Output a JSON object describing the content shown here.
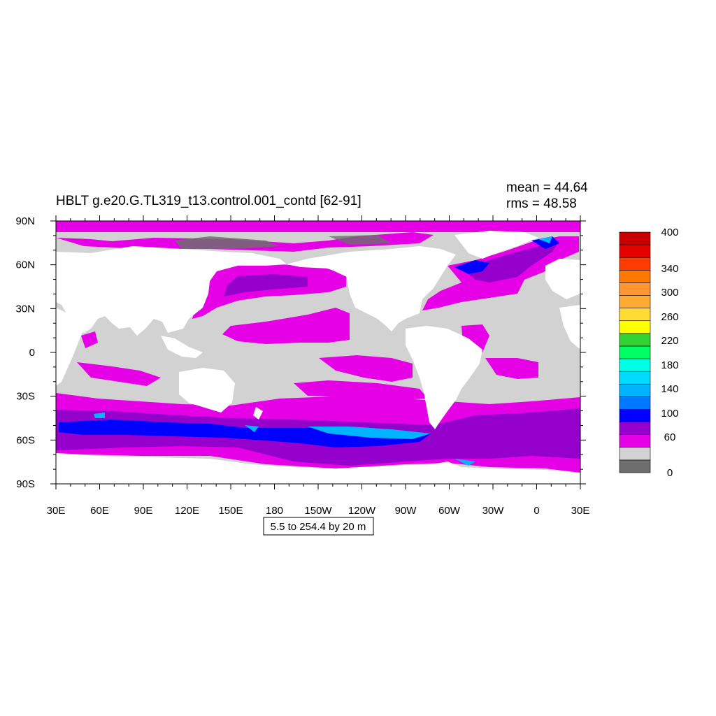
{
  "title": "HBLT g.e20.G.TL319_t13.control.001_contd [62-91]",
  "stats": {
    "mean": "mean = 44.64",
    "rms": "rms = 48.58"
  },
  "range_label": "5.5 to 254.4 by 20 m",
  "lat_ticks": [
    "90N",
    "60N",
    "30N",
    "0",
    "30S",
    "60S",
    "90S"
  ],
  "lon_ticks": [
    "30E",
    "60E",
    "90E",
    "120E",
    "150E",
    "180",
    "150W",
    "120W",
    "90W",
    "60W",
    "30W",
    "0",
    "30E"
  ],
  "colorbar": {
    "colors": [
      "#6e6e6e",
      "#d2d2d2",
      "#e600e6",
      "#9600cd",
      "#0000ff",
      "#0078ff",
      "#00b4ff",
      "#00dcff",
      "#00ffe6",
      "#00ff64",
      "#32d232",
      "#ffff00",
      "#ffdc32",
      "#ffaa32",
      "#ff9632",
      "#ff7800",
      "#ff3c00",
      "#e60000",
      "#c80000"
    ],
    "labels": [
      "0",
      "60",
      "100",
      "140",
      "180",
      "220",
      "260",
      "300",
      "340",
      "400"
    ]
  },
  "colors": {
    "land": "#ffffff",
    "ocean_low": "#d2d2d2",
    "magenta": "#e600e6",
    "purple": "#9600cd",
    "blue": "#0000ff",
    "cyan": "#00b4ff",
    "dark_gray": "#6e6e6e"
  }
}
